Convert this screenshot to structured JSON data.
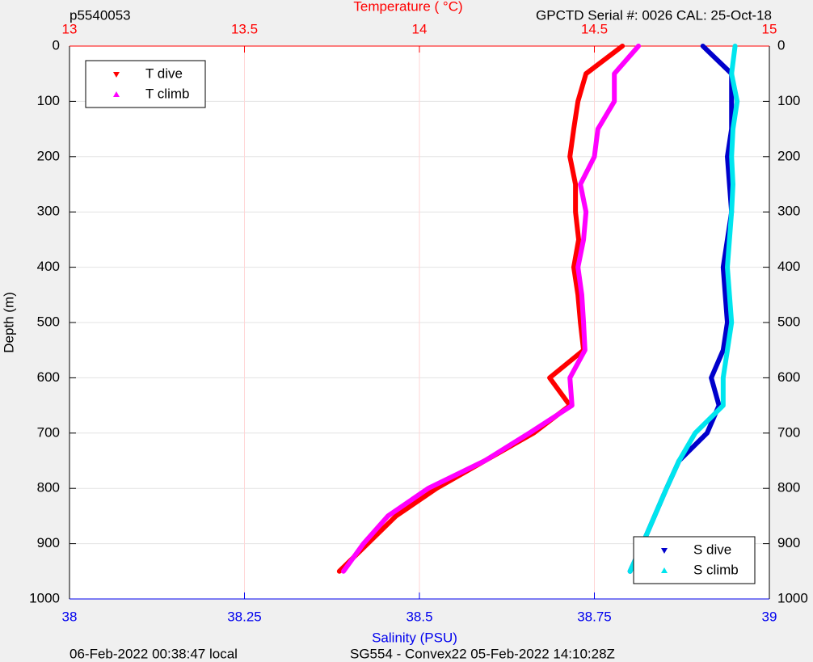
{
  "chart_data": {
    "type": "line",
    "title": "p5540053",
    "subtitle": "GPCTD Serial #: 0026 CAL: 25-Oct-18",
    "x_label": "Temperature (   °C)",
    "x2_label": "Salinity (PSU)",
    "y_label": "Depth (m)",
    "footer_left": "06-Feb-2022 00:38:47 local",
    "footer_right": "SG554 - Convex22 05-Feb-2022 14:10:28Z",
    "y": [
      0,
      50,
      100,
      150,
      200,
      250,
      300,
      350,
      400,
      450,
      500,
      550,
      600,
      650,
      700,
      750,
      800,
      850,
      900,
      950
    ],
    "series": [
      {
        "name": "T dive",
        "color": "#ff0000",
        "axis": "x",
        "legend": "upper left",
        "values": [
          14.58,
          14.476,
          14.453,
          14.441,
          14.43,
          14.446,
          14.446,
          14.455,
          14.441,
          14.453,
          14.46,
          14.469,
          14.372,
          14.43,
          14.326,
          14.187,
          14.049,
          13.933,
          13.852,
          13.771
        ]
      },
      {
        "name": "T climb",
        "color": "#ff00ff",
        "axis": "x",
        "legend": "upper left",
        "values": [
          14.626,
          14.557,
          14.557,
          14.51,
          14.5,
          14.46,
          14.476,
          14.469,
          14.453,
          14.464,
          14.469,
          14.473,
          14.43,
          14.436,
          14.314,
          14.187,
          14.025,
          13.91,
          13.84,
          13.783
        ]
      },
      {
        "name": "S dive",
        "color": "#0000cc",
        "axis": "x2",
        "legend": "lower right",
        "values": [
          38.905,
          38.946,
          38.946,
          38.946,
          38.94,
          38.943,
          38.946,
          38.94,
          38.934,
          38.937,
          38.94,
          38.934,
          38.917,
          38.928,
          38.911,
          38.871,
          38.853,
          38.836,
          38.819,
          38.801
        ]
      },
      {
        "name": "S climb",
        "color": "#00e5ee",
        "axis": "x2",
        "legend": "lower right",
        "values": [
          38.951,
          38.946,
          38.954,
          38.948,
          38.946,
          38.948,
          38.946,
          38.943,
          38.94,
          38.943,
          38.946,
          38.94,
          38.934,
          38.934,
          38.894,
          38.871,
          38.853,
          38.836,
          38.819,
          38.801
        ]
      }
    ],
    "xlim": [
      13,
      15
    ],
    "xticks": [
      13,
      13.5,
      14,
      14.5,
      15
    ],
    "x_color": "#ff0000",
    "x2lim": [
      38,
      39
    ],
    "x2ticks": [
      38,
      38.25,
      38.5,
      38.75,
      39
    ],
    "x2_color": "#0000ee",
    "ylim": [
      0,
      1000
    ],
    "yticks": [
      0,
      100,
      200,
      300,
      400,
      500,
      600,
      700,
      800,
      900,
      1000
    ],
    "y_inverted": true,
    "grid": true
  }
}
